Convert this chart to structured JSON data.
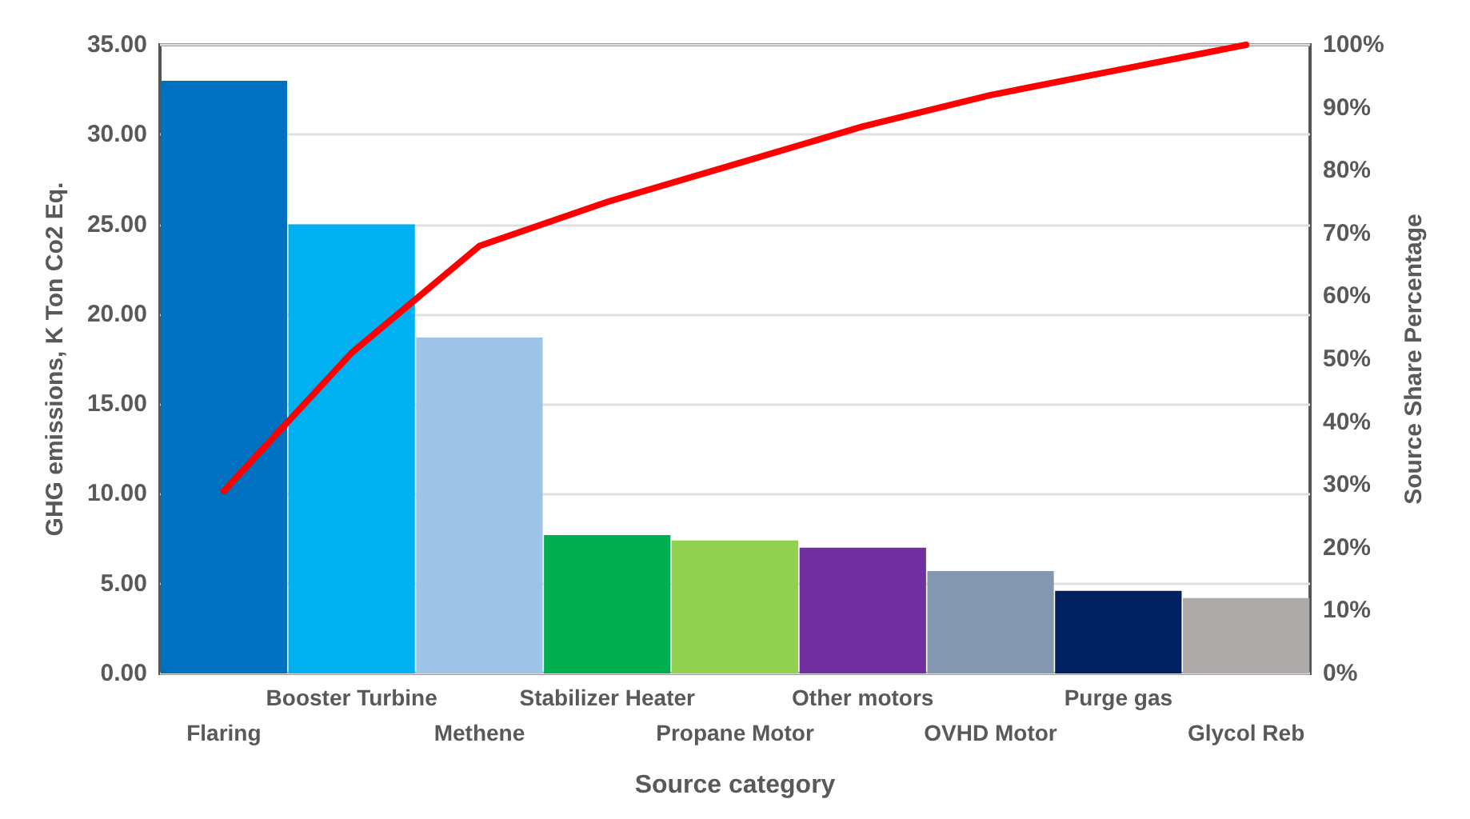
{
  "chart_data": {
    "type": "bar",
    "xlabel": "Source category",
    "ylabel": "GHG emissions, K Ton Co2 Eq.",
    "y2label": "Source Share Percentage",
    "categories": [
      "Flaring",
      "Booster Turbine",
      "Methene",
      "Stabilizer Heater",
      "Propane Motor",
      "Other motors",
      "OVHD Motor",
      "Purge gas",
      "Glycol Reb"
    ],
    "series": [
      {
        "values": [
          33.0,
          25.0,
          18.7,
          7.7,
          7.4,
          7.0,
          5.7,
          4.6,
          4.2
        ],
        "colors": [
          "#0070c0",
          "#00b0f0",
          "#9dc3e6",
          "#00b050",
          "#92d050",
          "#7030a0",
          "#8497b0",
          "#002060",
          "#aeaaaa"
        ]
      },
      {
        "type": "line",
        "axis": "y2",
        "color": "#ff0000",
        "values": [
          29,
          51,
          68,
          75,
          81,
          87,
          92,
          96,
          100
        ]
      }
    ],
    "ylim": [
      0,
      35
    ],
    "yticks": [
      {
        "value": 0,
        "label": "0.00"
      },
      {
        "value": 5,
        "label": "5.00"
      },
      {
        "value": 10,
        "label": "10.00"
      },
      {
        "value": 15,
        "label": "15.00"
      },
      {
        "value": 20,
        "label": "20.00"
      },
      {
        "value": 25,
        "label": "25.00"
      },
      {
        "value": 30,
        "label": "30.00"
      },
      {
        "value": 35,
        "label": "35.00"
      }
    ],
    "y2lim": [
      0,
      100
    ],
    "y2ticks": [
      {
        "value": 0,
        "label": "0%"
      },
      {
        "value": 10,
        "label": "10%"
      },
      {
        "value": 20,
        "label": "20%"
      },
      {
        "value": 30,
        "label": "30%"
      },
      {
        "value": 40,
        "label": "40%"
      },
      {
        "value": 50,
        "label": "50%"
      },
      {
        "value": 60,
        "label": "60%"
      },
      {
        "value": 70,
        "label": "70%"
      },
      {
        "value": 80,
        "label": "80%"
      },
      {
        "value": 90,
        "label": "90%"
      },
      {
        "value": 100,
        "label": "100%"
      }
    ],
    "grid": "y",
    "marker": "none",
    "line_style": "solid"
  }
}
